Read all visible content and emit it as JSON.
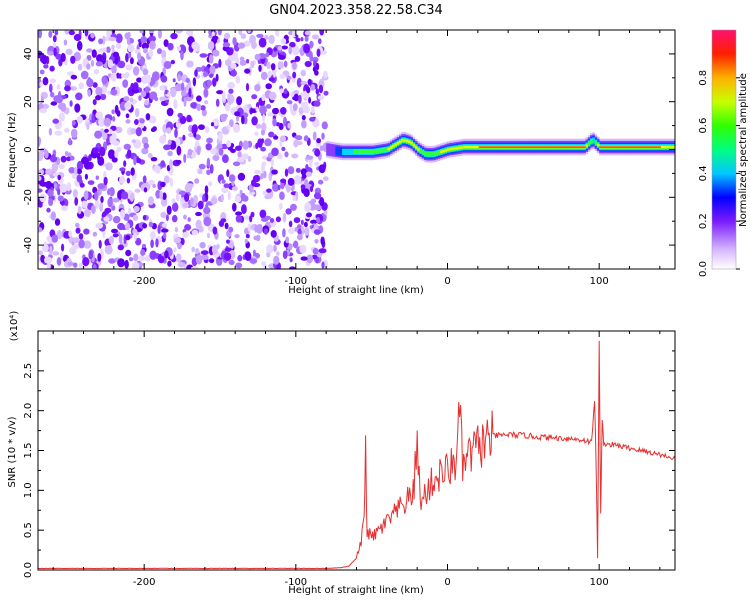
{
  "figure": {
    "title": "GN04.2023.358.22.58.C34"
  },
  "chart_data": [
    {
      "type": "heatmap",
      "title": "",
      "xlabel": "Height of straight line (km)",
      "ylabel": "Frequency (Hz)",
      "xlim": [
        -270,
        150
      ],
      "ylim": [
        -50,
        50
      ],
      "x_ticks": [
        -200,
        -100,
        0,
        100
      ],
      "y_ticks": [
        -40,
        -20,
        0,
        20,
        40
      ],
      "noise_region_x": [
        -270,
        -80
      ],
      "signal_trace": {
        "x": [
          -80,
          -70,
          -60,
          -50,
          -40,
          -35,
          -30,
          -25,
          -20,
          -15,
          -10,
          -5,
          0,
          10,
          20,
          30,
          40,
          50,
          60,
          70,
          80,
          90,
          95,
          100,
          110,
          120,
          130,
          140,
          150
        ],
        "y": [
          0,
          -1,
          -1,
          -1,
          0,
          2,
          4,
          3,
          0,
          -2,
          -2,
          -1,
          0,
          1,
          1,
          1,
          1,
          1,
          1,
          1,
          1,
          1,
          4,
          1,
          1,
          1,
          1,
          1,
          1
        ],
        "strength": [
          0.35,
          0.55,
          0.7,
          0.75,
          0.8,
          0.85,
          0.9,
          0.85,
          0.8,
          0.75,
          0.75,
          0.8,
          0.8,
          0.85,
          0.9,
          0.95,
          0.95,
          0.95,
          0.95,
          0.95,
          0.95,
          0.95,
          0.6,
          0.95,
          0.95,
          0.95,
          0.95,
          0.9,
          0.85
        ]
      },
      "colorbar": {
        "label": "Normalized spectral amplitude",
        "range": [
          0,
          1
        ],
        "ticks": [
          "0.0",
          "0.2",
          "0.4",
          "0.6",
          "0.8"
        ]
      }
    },
    {
      "type": "line",
      "title": "",
      "xlabel": "Height of straight line (km)",
      "ylabel": "SNR (10 * v/v)",
      "scale_label": "(x10⁴)",
      "xlim": [
        -270,
        150
      ],
      "ylim": [
        0,
        3.0
      ],
      "x_ticks": [
        -200,
        -100,
        0,
        100
      ],
      "y_ticks": [
        "0.0",
        "0.5",
        "1.0",
        "1.5",
        "2.0",
        "2.5"
      ],
      "series": [
        {
          "color": "#e53030",
          "x": [
            -270,
            -250,
            -200,
            -150,
            -100,
            -80,
            -70,
            -65,
            -60,
            -57,
            -55,
            -54,
            -53,
            -50,
            -45,
            -40,
            -35,
            -30,
            -25,
            -22,
            -20,
            -18,
            -15,
            -10,
            -5,
            0,
            5,
            8,
            10,
            15,
            20,
            25,
            30,
            40,
            50,
            60,
            70,
            80,
            90,
            95,
            97,
            98,
            99,
            100,
            101,
            102,
            103,
            105,
            110,
            120,
            130,
            140,
            150
          ],
          "y": [
            0.02,
            0.02,
            0.02,
            0.02,
            0.02,
            0.02,
            0.03,
            0.05,
            0.15,
            0.35,
            0.6,
            1.52,
            0.5,
            0.4,
            0.5,
            0.6,
            0.7,
            0.8,
            0.9,
            1.0,
            1.77,
            0.8,
            0.95,
            1.1,
            1.2,
            1.25,
            1.35,
            1.95,
            1.3,
            1.45,
            1.55,
            1.62,
            1.68,
            1.7,
            1.69,
            1.67,
            1.66,
            1.65,
            1.63,
            1.6,
            2.15,
            1.3,
            0.15,
            2.9,
            0.7,
            1.85,
            1.6,
            1.58,
            1.57,
            1.53,
            1.49,
            1.45,
            1.4
          ]
        }
      ]
    }
  ]
}
